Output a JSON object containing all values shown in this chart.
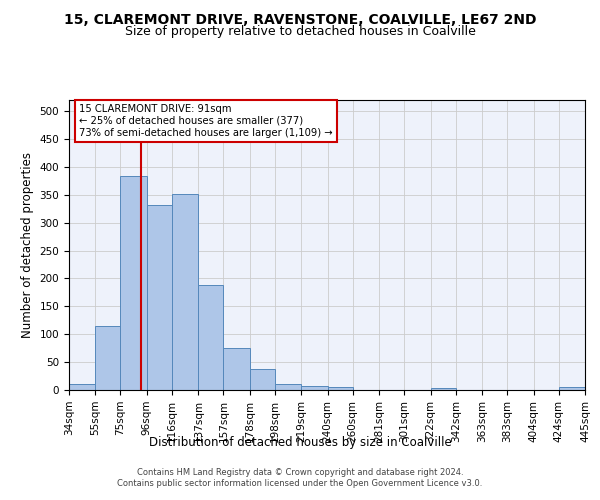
{
  "title": "15, CLAREMONT DRIVE, RAVENSTONE, COALVILLE, LE67 2ND",
  "subtitle": "Size of property relative to detached houses in Coalville",
  "xlabel": "Distribution of detached houses by size in Coalville",
  "ylabel": "Number of detached properties",
  "footer_line1": "Contains HM Land Registry data © Crown copyright and database right 2024.",
  "footer_line2": "Contains public sector information licensed under the Open Government Licence v3.0.",
  "bin_edges": [
    34,
    55,
    75,
    96,
    116,
    137,
    157,
    178,
    198,
    219,
    240,
    260,
    281,
    301,
    322,
    342,
    363,
    383,
    404,
    424,
    445
  ],
  "bar_heights": [
    11,
    114,
    383,
    331,
    352,
    188,
    76,
    38,
    11,
    7,
    5,
    0,
    0,
    0,
    4,
    0,
    0,
    0,
    0,
    5
  ],
  "bar_color": "#aec6e8",
  "bar_edge_color": "#5588bb",
  "property_size": 91,
  "vline_color": "#cc0000",
  "annotation_text": "15 CLAREMONT DRIVE: 91sqm\n← 25% of detached houses are smaller (377)\n73% of semi-detached houses are larger (1,109) →",
  "annotation_box_color": "#ffffff",
  "annotation_box_edge": "#cc0000",
  "ylim": [
    0,
    520
  ],
  "yticks": [
    0,
    50,
    100,
    150,
    200,
    250,
    300,
    350,
    400,
    450,
    500
  ],
  "grid_color": "#cccccc",
  "background_color": "#eef2fb",
  "title_fontsize": 10,
  "subtitle_fontsize": 9,
  "tick_fontsize": 7.5,
  "label_fontsize": 8.5,
  "footer_fontsize": 6
}
